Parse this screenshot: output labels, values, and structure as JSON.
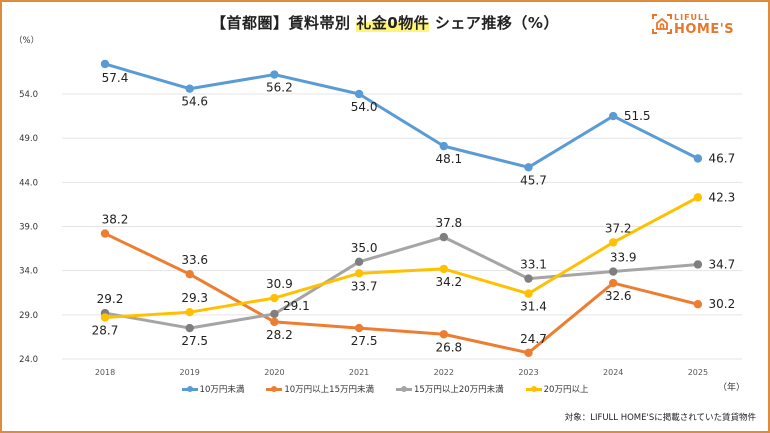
{
  "header": {
    "title_prefix": "【首都圏】賃料帯別 ",
    "title_highlight": "礼金0物件",
    "title_suffix": " シェア推移（%）",
    "logo_line1": "LIFULL",
    "logo_line2": "HOME'S"
  },
  "footnote": "対象：LIFULL HOME'Sに掲載されていた賃貸物件",
  "colors": {
    "frame": "#e08a3c",
    "brand": "#e8772e",
    "highlight": "#fff47a"
  },
  "chart_data": {
    "type": "line",
    "title": "【首都圏】賃料帯別 礼金0物件 シェア推移（%）",
    "xlabel": "（年）",
    "ylabel": "（%）",
    "categories": [
      "2018",
      "2019",
      "2020",
      "2021",
      "2022",
      "2023",
      "2024",
      "2025"
    ],
    "yticks": [
      "24.0",
      "29.0",
      "34.0",
      "39.0",
      "44.0",
      "49.0",
      "54.0"
    ],
    "ylim": [
      24.0,
      57.4
    ],
    "grid": true,
    "legend_position": "bottom",
    "series": [
      {
        "name": "10万円未満",
        "color": "#5b9bd5",
        "values": [
          57.4,
          54.6,
          56.2,
          54.0,
          48.1,
          45.7,
          51.5,
          46.7
        ],
        "labels": [
          "57.4",
          "54.6",
          "56.2",
          "54.0",
          "48.1",
          "45.7",
          "51.5",
          "46.7"
        ]
      },
      {
        "name": "10万円以上15万円未満",
        "color": "#ed7d31",
        "values": [
          38.2,
          33.6,
          28.2,
          27.5,
          26.8,
          24.7,
          32.6,
          30.2
        ],
        "labels": [
          "38.2",
          "33.6",
          "28.2",
          "27.5",
          "26.8",
          "24.7",
          "32.6",
          "30.2"
        ]
      },
      {
        "name": "15万円以上20万円未満",
        "color": "#a5a5a5",
        "marker_color": "#7f7f7f",
        "values": [
          29.2,
          27.5,
          29.1,
          35.0,
          37.8,
          33.1,
          33.9,
          34.7
        ],
        "labels": [
          "29.2",
          "27.5",
          "29.1",
          "35.0",
          "37.8",
          "33.1",
          "33.9",
          "34.7"
        ]
      },
      {
        "name": "20万円以上",
        "color": "#ffc000",
        "values": [
          28.7,
          29.3,
          30.9,
          33.7,
          34.2,
          31.4,
          37.2,
          42.3
        ],
        "labels": [
          "28.7",
          "29.3",
          "30.9",
          "33.7",
          "34.2",
          "31.4",
          "37.2",
          "42.3"
        ]
      }
    ]
  }
}
